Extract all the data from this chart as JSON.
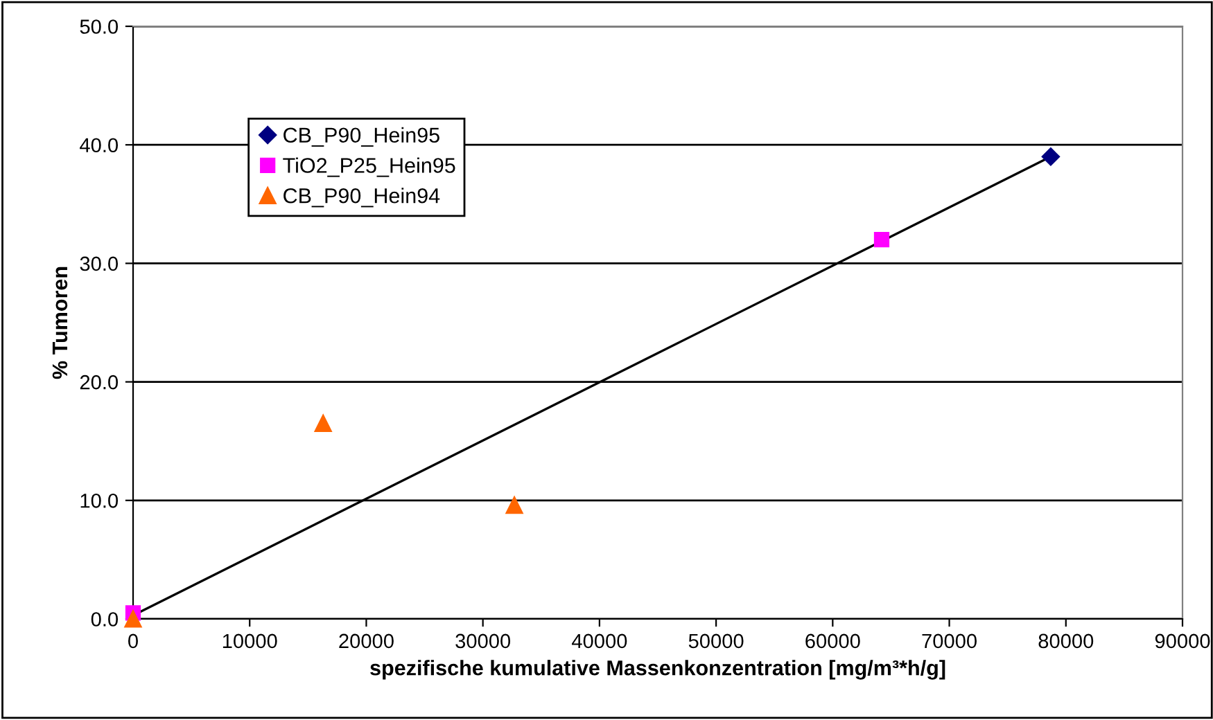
{
  "chart_data": {
    "type": "scatter",
    "xlabel": "spezifische kumulative Massenkonzentration [mg/m³*h/g]",
    "ylabel": "% Tumoren",
    "series": [
      {
        "name": "CB_P90_Hein95",
        "color": "#000080",
        "marker": "diamond",
        "x": [
          78700
        ],
        "values": [
          39.0
        ]
      },
      {
        "name": "TiO2_P25_Hein95",
        "color": "#ff00ff",
        "marker": "square",
        "x": [
          0,
          64200
        ],
        "values": [
          0.5,
          32.0
        ]
      },
      {
        "name": "CB_P90_Hein94",
        "color": "#ff6600",
        "marker": "triangle",
        "x": [
          0,
          16300,
          32700
        ],
        "values": [
          0.0,
          16.5,
          9.6
        ]
      },
      {
        "type": "line",
        "color": "#000000",
        "marker": "none",
        "x": [
          0,
          78700
        ],
        "values": [
          0.3,
          39.0
        ]
      }
    ],
    "xlim": [
      0,
      90000
    ],
    "xticks": [
      0,
      10000,
      20000,
      30000,
      40000,
      50000,
      60000,
      70000,
      80000,
      90000
    ],
    "ylim": [
      0,
      50
    ],
    "yticks": [
      {
        "value": 0,
        "label": "0.0"
      },
      {
        "value": 10,
        "label": "10.0"
      },
      {
        "value": 20,
        "label": "20.0"
      },
      {
        "value": 30,
        "label": "30.0"
      },
      {
        "value": 40,
        "label": "40.0"
      },
      {
        "value": 50,
        "label": "50.0"
      }
    ],
    "grid": "y",
    "legend": "top left"
  }
}
